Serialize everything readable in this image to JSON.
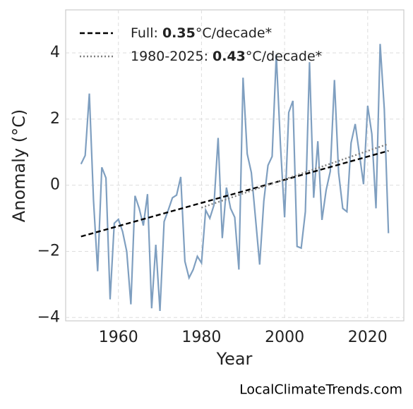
{
  "chart_data": {
    "type": "line",
    "x_label": "Year",
    "y_label": "Anomaly (°C)",
    "xlim": [
      1947.3,
      2028.7
    ],
    "ylim": [
      -4.1,
      5.3
    ],
    "xticks": [
      1960,
      1980,
      2000,
      2020
    ],
    "yticks": [
      {
        "value": -4,
        "label": "−4"
      },
      {
        "value": -2,
        "label": "−2"
      },
      0,
      2,
      4
    ],
    "grid": true,
    "legend": "upper left",
    "series": [
      {
        "name": null,
        "color": "#7f9fc0",
        "linestyle": "solid",
        "x": [
          1951,
          1952,
          1953,
          1954,
          1955,
          1956,
          1957,
          1958,
          1959,
          1960,
          1961,
          1962,
          1963,
          1964,
          1965,
          1966,
          1967,
          1968,
          1969,
          1970,
          1971,
          1972,
          1973,
          1974,
          1975,
          1976,
          1977,
          1978,
          1979,
          1980,
          1981,
          1982,
          1983,
          1984,
          1985,
          1986,
          1987,
          1988,
          1989,
          1990,
          1991,
          1992,
          1993,
          1994,
          1995,
          1996,
          1997,
          1998,
          1999,
          2000,
          2001,
          2002,
          2003,
          2004,
          2005,
          2006,
          2007,
          2008,
          2009,
          2010,
          2011,
          2012,
          2013,
          2014,
          2015,
          2016,
          2017,
          2018,
          2019,
          2020,
          2021,
          2022,
          2023,
          2024,
          2025
        ],
        "values": [
          0.64,
          0.9,
          2.77,
          -0.45,
          -2.6,
          0.54,
          0.22,
          -3.45,
          -1.15,
          -1.03,
          -1.4,
          -2.0,
          -3.6,
          -0.32,
          -0.7,
          -1.22,
          -0.27,
          -3.72,
          -1.8,
          -3.8,
          -1.1,
          -0.75,
          -0.38,
          -0.3,
          0.25,
          -2.3,
          -2.8,
          -2.55,
          -2.15,
          -2.35,
          -0.75,
          -1.0,
          -0.6,
          1.43,
          -1.6,
          -0.07,
          -0.7,
          -0.97,
          -2.55,
          3.25,
          0.95,
          0.38,
          -1.0,
          -2.4,
          -0.48,
          0.6,
          0.87,
          3.95,
          1.23,
          -0.97,
          2.2,
          2.55,
          -1.85,
          -1.9,
          -0.8,
          3.72,
          -0.38,
          1.33,
          -1.05,
          -0.15,
          0.42,
          3.18,
          0.38,
          -0.7,
          -0.8,
          1.28,
          1.85,
          0.95,
          0.03,
          2.4,
          1.55,
          -0.7,
          4.27,
          2.3,
          -1.45
        ]
      },
      {
        "name": [
          "Full: ",
          "0.35",
          "°C/decade*"
        ],
        "color": "#000000",
        "linestyle": "dashed",
        "x": [
          1951,
          2025
        ],
        "values": [
          -1.55,
          1.04
        ]
      },
      {
        "name": [
          "1980-2025: ",
          "0.43",
          "°C/decade*"
        ],
        "color": "#808080",
        "linestyle": "dotted",
        "x": [
          1980,
          2025
        ],
        "values": [
          -0.68,
          1.25
        ]
      }
    ],
    "footer": "LocalClimateTrends.com"
  }
}
